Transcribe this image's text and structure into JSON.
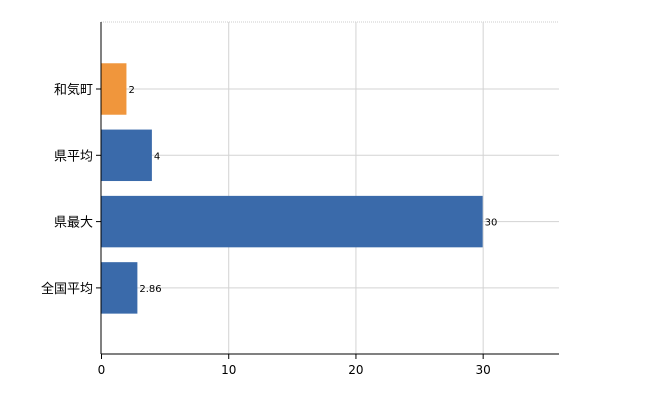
{
  "chart_data": {
    "type": "bar",
    "orientation": "horizontal",
    "categories": [
      "和気町",
      "県平均",
      "県最大",
      "全国平均"
    ],
    "values": [
      2,
      4,
      30,
      2.86
    ],
    "value_labels": [
      "2",
      "4",
      "30",
      "2.86"
    ],
    "bar_colors": [
      "#F0963C",
      "#3A6AAA",
      "#3A6AAA",
      "#3A6AAA"
    ],
    "xlim": [
      0,
      36
    ],
    "x_ticks": [
      0,
      10,
      20,
      30
    ],
    "x_tick_labels": [
      "0",
      "10",
      "20",
      "30"
    ],
    "grid": true,
    "title": "",
    "xlabel": "",
    "ylabel": ""
  }
}
